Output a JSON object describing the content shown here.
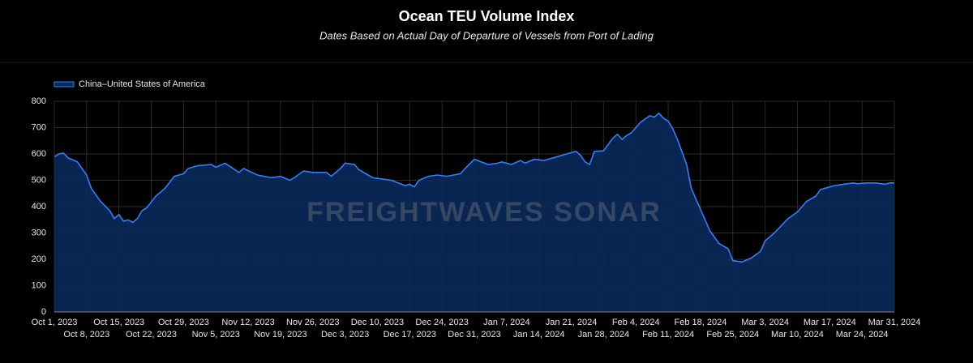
{
  "chart_data": {
    "type": "area",
    "title": "Ocean TEU Volume Index",
    "subtitle": "Dates Based on Actual Day of Departure of Vessels from Port of Lading",
    "watermark": "FREIGHTWAVES SONAR",
    "legend": "top-left",
    "grid": true,
    "xlim": [
      "2023-10-01",
      "2024-03-31"
    ],
    "ylim": [
      0,
      800
    ],
    "yticks": [
      0,
      100,
      200,
      300,
      400,
      500,
      600,
      700,
      800
    ],
    "xticks": [
      {
        "value": "2023-10-01",
        "label": "Oct 1, 2023"
      },
      {
        "value": "2023-10-08",
        "label": "Oct 8, 2023"
      },
      {
        "value": "2023-10-15",
        "label": "Oct 15, 2023"
      },
      {
        "value": "2023-10-22",
        "label": "Oct 22, 2023"
      },
      {
        "value": "2023-10-29",
        "label": "Oct 29, 2023"
      },
      {
        "value": "2023-11-05",
        "label": "Nov 5, 2023"
      },
      {
        "value": "2023-11-12",
        "label": "Nov 12, 2023"
      },
      {
        "value": "2023-11-19",
        "label": "Nov 19, 2023"
      },
      {
        "value": "2023-11-26",
        "label": "Nov 26, 2023"
      },
      {
        "value": "2023-12-03",
        "label": "Dec 3, 2023"
      },
      {
        "value": "2023-12-10",
        "label": "Dec 10, 2023"
      },
      {
        "value": "2023-12-17",
        "label": "Dec 17, 2023"
      },
      {
        "value": "2023-12-24",
        "label": "Dec 24, 2023"
      },
      {
        "value": "2023-12-31",
        "label": "Dec 31, 2023"
      },
      {
        "value": "2024-01-07",
        "label": "Jan 7, 2024"
      },
      {
        "value": "2024-01-14",
        "label": "Jan 14, 2024"
      },
      {
        "value": "2024-01-21",
        "label": "Jan 21, 2024"
      },
      {
        "value": "2024-01-28",
        "label": "Jan 28, 2024"
      },
      {
        "value": "2024-02-04",
        "label": "Feb 4, 2024"
      },
      {
        "value": "2024-02-11",
        "label": "Feb 11, 2024"
      },
      {
        "value": "2024-02-18",
        "label": "Feb 18, 2024"
      },
      {
        "value": "2024-02-25",
        "label": "Feb 25, 2024"
      },
      {
        "value": "2024-03-03",
        "label": "Mar 3, 2024"
      },
      {
        "value": "2024-03-10",
        "label": "Mar 10, 2024"
      },
      {
        "value": "2024-03-17",
        "label": "Mar 17, 2024"
      },
      {
        "value": "2024-03-24",
        "label": "Mar 24, 2024"
      },
      {
        "value": "2024-03-31",
        "label": "Mar 31, 2024"
      }
    ],
    "x": [
      "2023-10-01",
      "2023-10-02",
      "2023-10-03",
      "2023-10-04",
      "2023-10-06",
      "2023-10-08",
      "2023-10-09",
      "2023-10-11",
      "2023-10-13",
      "2023-10-14",
      "2023-10-15",
      "2023-10-16",
      "2023-10-17",
      "2023-10-18",
      "2023-10-19",
      "2023-10-20",
      "2023-10-21",
      "2023-10-23",
      "2023-10-25",
      "2023-10-27",
      "2023-10-29",
      "2023-10-30",
      "2023-11-01",
      "2023-11-04",
      "2023-11-05",
      "2023-11-07",
      "2023-11-10",
      "2023-11-11",
      "2023-11-14",
      "2023-11-17",
      "2023-11-19",
      "2023-11-21",
      "2023-11-22",
      "2023-11-24",
      "2023-11-26",
      "2023-11-29",
      "2023-11-30",
      "2023-12-02",
      "2023-12-03",
      "2023-12-05",
      "2023-12-06",
      "2023-12-08",
      "2023-12-09",
      "2023-12-11",
      "2023-12-13",
      "2023-12-16",
      "2023-12-17",
      "2023-12-18",
      "2023-12-19",
      "2023-12-21",
      "2023-12-23",
      "2023-12-25",
      "2023-12-28",
      "2023-12-29",
      "2023-12-31",
      "2024-01-03",
      "2024-01-05",
      "2024-01-06",
      "2024-01-08",
      "2024-01-10",
      "2024-01-11",
      "2024-01-13",
      "2024-01-15",
      "2024-01-18",
      "2024-01-20",
      "2024-01-22",
      "2024-01-23",
      "2024-01-24",
      "2024-01-25",
      "2024-01-26",
      "2024-01-28",
      "2024-01-30",
      "2024-01-31",
      "2024-02-01",
      "2024-02-02",
      "2024-02-03",
      "2024-02-05",
      "2024-02-07",
      "2024-02-08",
      "2024-02-09",
      "2024-02-10",
      "2024-02-11",
      "2024-02-12",
      "2024-02-13",
      "2024-02-15",
      "2024-02-16",
      "2024-02-18",
      "2024-02-20",
      "2024-02-22",
      "2024-02-24",
      "2024-02-25",
      "2024-02-27",
      "2024-02-29",
      "2024-03-02",
      "2024-03-03",
      "2024-03-05",
      "2024-03-08",
      "2024-03-10",
      "2024-03-12",
      "2024-03-14",
      "2024-03-15",
      "2024-03-16",
      "2024-03-18",
      "2024-03-20",
      "2024-03-22",
      "2024-03-23",
      "2024-03-25",
      "2024-03-27",
      "2024-03-29",
      "2024-03-30",
      "2024-03-31"
    ],
    "series": [
      {
        "name": "China–United States of America",
        "color": "#2f7fff",
        "fill": "#0a2a5c",
        "values": [
          590,
          600,
          603,
          585,
          570,
          520,
          470,
          420,
          385,
          355,
          370,
          345,
          350,
          340,
          355,
          385,
          395,
          440,
          470,
          515,
          525,
          545,
          555,
          560,
          550,
          565,
          530,
          545,
          520,
          510,
          515,
          500,
          510,
          535,
          530,
          530,
          515,
          545,
          565,
          560,
          540,
          520,
          510,
          505,
          500,
          480,
          485,
          475,
          500,
          515,
          520,
          515,
          525,
          545,
          580,
          560,
          565,
          570,
          560,
          575,
          565,
          580,
          575,
          590,
          600,
          610,
          595,
          570,
          560,
          610,
          612,
          660,
          675,
          655,
          670,
          680,
          720,
          745,
          740,
          755,
          735,
          725,
          695,
          655,
          560,
          470,
          390,
          310,
          260,
          240,
          195,
          190,
          205,
          230,
          270,
          300,
          355,
          380,
          420,
          440,
          465,
          470,
          480,
          485,
          490,
          487,
          490,
          490,
          485,
          490,
          490
        ]
      }
    ]
  }
}
